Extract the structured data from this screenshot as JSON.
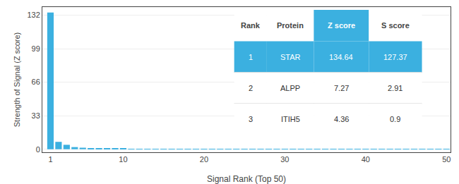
{
  "chart_data": {
    "type": "bar",
    "xlabel": "Signal Rank (Top 50)",
    "ylabel": "Strength of Signal (Z score)",
    "x": [
      1,
      2,
      3,
      4,
      5,
      6,
      7,
      8,
      9,
      10,
      11,
      12,
      13,
      14,
      15,
      16,
      17,
      18,
      19,
      20,
      21,
      22,
      23,
      24,
      25,
      26,
      27,
      28,
      29,
      30,
      31,
      32,
      33,
      34,
      35,
      36,
      37,
      38,
      39,
      40,
      41,
      42,
      43,
      44,
      45,
      46,
      47,
      48,
      49,
      50
    ],
    "values": [
      134.64,
      7.27,
      4.36,
      2.1,
      1.5,
      1.1,
      0.85,
      0.7,
      0.58,
      0.48,
      0.42,
      0.37,
      0.33,
      0.29,
      0.26,
      0.23,
      0.21,
      0.19,
      0.17,
      0.16,
      0.15,
      0.14,
      0.13,
      0.12,
      0.11,
      0.1,
      0.09,
      0.09,
      0.08,
      0.08,
      0.07,
      0.07,
      0.06,
      0.06,
      0.06,
      0.05,
      0.05,
      0.05,
      0.04,
      0.04,
      0.04,
      0.04,
      0.03,
      0.03,
      0.03,
      0.03,
      0.03,
      0.02,
      0.02,
      0.02
    ],
    "color": "#3bb0e0",
    "xlim": [
      0.0,
      50.5
    ],
    "ylim": [
      -3,
      140
    ],
    "xticks": [
      1,
      10,
      20,
      30,
      40,
      50
    ],
    "yticks": [
      0,
      33,
      66,
      99,
      132
    ],
    "grid": true,
    "table": {
      "headers": [
        "Rank",
        "Protein",
        "Z score",
        "S score"
      ],
      "rows": [
        [
          "1",
          "STAR",
          "134.64",
          "127.37"
        ],
        [
          "2",
          "ALPP",
          "7.27",
          "2.91"
        ],
        [
          "3",
          "ITIH5",
          "4.36",
          "0.9"
        ]
      ]
    }
  }
}
